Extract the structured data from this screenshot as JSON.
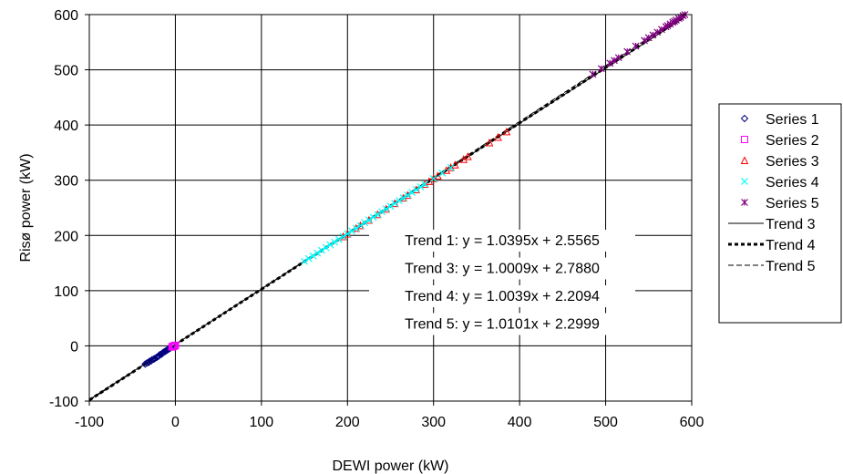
{
  "chart_data": {
    "type": "scatter",
    "xlabel": "DEWI power (kW)",
    "ylabel": "Risø power (kW)",
    "xlim": [
      -100,
      600
    ],
    "ylim": [
      -100,
      600
    ],
    "xticks": [
      "-100",
      "0",
      "100",
      "200",
      "300",
      "400",
      "500",
      "600"
    ],
    "yticks": [
      "-100",
      "0",
      "100",
      "200",
      "300",
      "400",
      "500",
      "600"
    ],
    "grid": true,
    "legend_position": "right",
    "series": [
      {
        "name": "Series 1",
        "marker": "diamond",
        "color": "#000080",
        "points": [
          [
            -35,
            -33
          ],
          [
            -33,
            -31
          ],
          [
            -31,
            -30
          ],
          [
            -30,
            -28
          ],
          [
            -28,
            -27
          ],
          [
            -27,
            -25
          ],
          [
            -25,
            -24
          ],
          [
            -24,
            -23
          ],
          [
            -22,
            -21
          ],
          [
            -21,
            -20
          ],
          [
            -20,
            -19
          ],
          [
            -19,
            -18
          ],
          [
            -18,
            -16
          ],
          [
            -16,
            -15
          ],
          [
            -15,
            -13
          ],
          [
            -14,
            -12
          ],
          [
            -13,
            -11
          ],
          [
            -12,
            -10
          ],
          [
            -11,
            -9
          ],
          [
            -10,
            -8
          ],
          [
            -9,
            -7
          ],
          [
            -8,
            -6
          ],
          [
            -7,
            -5
          ],
          [
            -6,
            -4
          ],
          [
            -5,
            -3
          ]
        ]
      },
      {
        "name": "Series 2",
        "marker": "square",
        "color": "#ff00ff",
        "points": [
          [
            -4,
            -2
          ],
          [
            -3,
            -1
          ],
          [
            -2,
            -1
          ],
          [
            -1,
            0
          ],
          [
            0,
            1
          ],
          [
            -2,
            0
          ]
        ]
      },
      {
        "name": "Series 3",
        "marker": "triangle",
        "color": "#ff0000",
        "points": [
          [
            195,
            198
          ],
          [
            200,
            203
          ],
          [
            210,
            213
          ],
          [
            215,
            218
          ],
          [
            225,
            228
          ],
          [
            235,
            238
          ],
          [
            245,
            248
          ],
          [
            255,
            258
          ],
          [
            265,
            268
          ],
          [
            270,
            273
          ],
          [
            280,
            283
          ],
          [
            290,
            293
          ],
          [
            295,
            298
          ],
          [
            300,
            303
          ],
          [
            305,
            308
          ],
          [
            315,
            318
          ],
          [
            320,
            323
          ],
          [
            325,
            328
          ],
          [
            335,
            338
          ],
          [
            340,
            343
          ],
          [
            365,
            368
          ],
          [
            375,
            378
          ],
          [
            385,
            388
          ]
        ]
      },
      {
        "name": "Series 4",
        "marker": "x",
        "color": "#00ffff",
        "points": [
          [
            150,
            153
          ],
          [
            155,
            158
          ],
          [
            160,
            163
          ],
          [
            165,
            168
          ],
          [
            170,
            173
          ],
          [
            175,
            178
          ],
          [
            180,
            183
          ],
          [
            185,
            188
          ],
          [
            190,
            193
          ],
          [
            195,
            198
          ],
          [
            200,
            203
          ],
          [
            205,
            208
          ],
          [
            210,
            213
          ],
          [
            215,
            218
          ],
          [
            220,
            223
          ],
          [
            225,
            228
          ],
          [
            230,
            233
          ],
          [
            235,
            238
          ],
          [
            240,
            243
          ],
          [
            245,
            248
          ],
          [
            250,
            253
          ],
          [
            255,
            258
          ],
          [
            260,
            263
          ],
          [
            265,
            268
          ],
          [
            270,
            273
          ],
          [
            275,
            278
          ],
          [
            280,
            283
          ],
          [
            285,
            288
          ],
          [
            290,
            293
          ],
          [
            300,
            303
          ],
          [
            310,
            313
          ],
          [
            320,
            323
          ]
        ]
      },
      {
        "name": "Series 5",
        "marker": "star",
        "color": "#800080",
        "points": [
          [
            485,
            492
          ],
          [
            495,
            502
          ],
          [
            505,
            512
          ],
          [
            510,
            517
          ],
          [
            515,
            522
          ],
          [
            525,
            533
          ],
          [
            535,
            543
          ],
          [
            545,
            553
          ],
          [
            550,
            558
          ],
          [
            555,
            563
          ],
          [
            560,
            568
          ],
          [
            565,
            573
          ],
          [
            570,
            578
          ],
          [
            572,
            580
          ],
          [
            575,
            583
          ],
          [
            578,
            586
          ],
          [
            580,
            588
          ],
          [
            582,
            590
          ],
          [
            585,
            593
          ],
          [
            587,
            595
          ],
          [
            590,
            598
          ],
          [
            592,
            600
          ]
        ]
      }
    ],
    "trendlines": [
      {
        "name": "Trend 3",
        "style": "solid",
        "slope": 1.0009,
        "intercept": 2.788
      },
      {
        "name": "Trend 4",
        "style": "bold-dotted",
        "slope": 1.0039,
        "intercept": 2.2094
      },
      {
        "name": "Trend 5",
        "style": "dashed",
        "slope": 1.0101,
        "intercept": 2.2999
      }
    ],
    "annotations": [
      "Trend 1: y = 1.0395x + 2.5565",
      "Trend 3: y = 1.0009x + 2.7880",
      "Trend 4: y = 1.0039x + 2.2094",
      "Trend 5: y = 1.0101x + 2.2999"
    ]
  }
}
